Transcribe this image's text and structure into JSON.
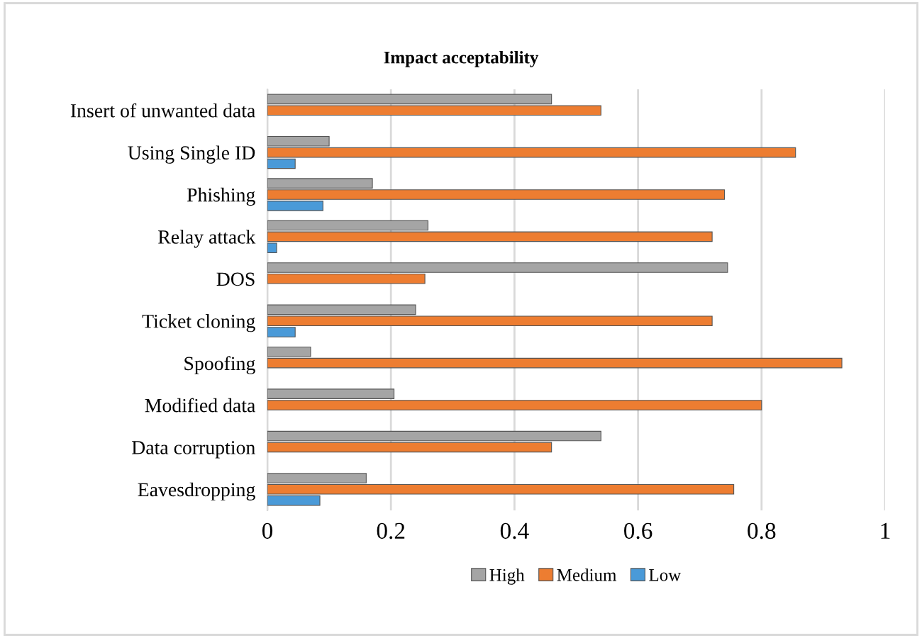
{
  "chart_data": {
    "type": "bar",
    "orientation": "horizontal",
    "title": "Impact acceptability",
    "categories": [
      "Insert of unwanted data",
      "Using Single ID",
      "Phishing",
      "Relay attack",
      "DOS",
      "Ticket cloning",
      "Spoofing",
      "Modified data",
      "Data corruption",
      "Eavesdropping"
    ],
    "series": [
      {
        "name": "High",
        "color": "#a5a5a5",
        "values": [
          0.46,
          0.1,
          0.17,
          0.26,
          0.745,
          0.24,
          0.07,
          0.205,
          0.54,
          0.16
        ]
      },
      {
        "name": "Medium",
        "color": "#ed7d31",
        "values": [
          0.54,
          0.855,
          0.74,
          0.72,
          0.255,
          0.72,
          0.93,
          0.8,
          0.46,
          0.755
        ]
      },
      {
        "name": "Low",
        "color": "#4a9ad8",
        "values": [
          null,
          0.045,
          0.09,
          0.015,
          null,
          0.045,
          null,
          null,
          null,
          0.085
        ]
      }
    ],
    "xlim": [
      0,
      1
    ],
    "xticks": [
      0,
      0.2,
      0.4,
      0.6,
      0.8,
      1
    ],
    "grid": "x",
    "legend": "bottom"
  }
}
